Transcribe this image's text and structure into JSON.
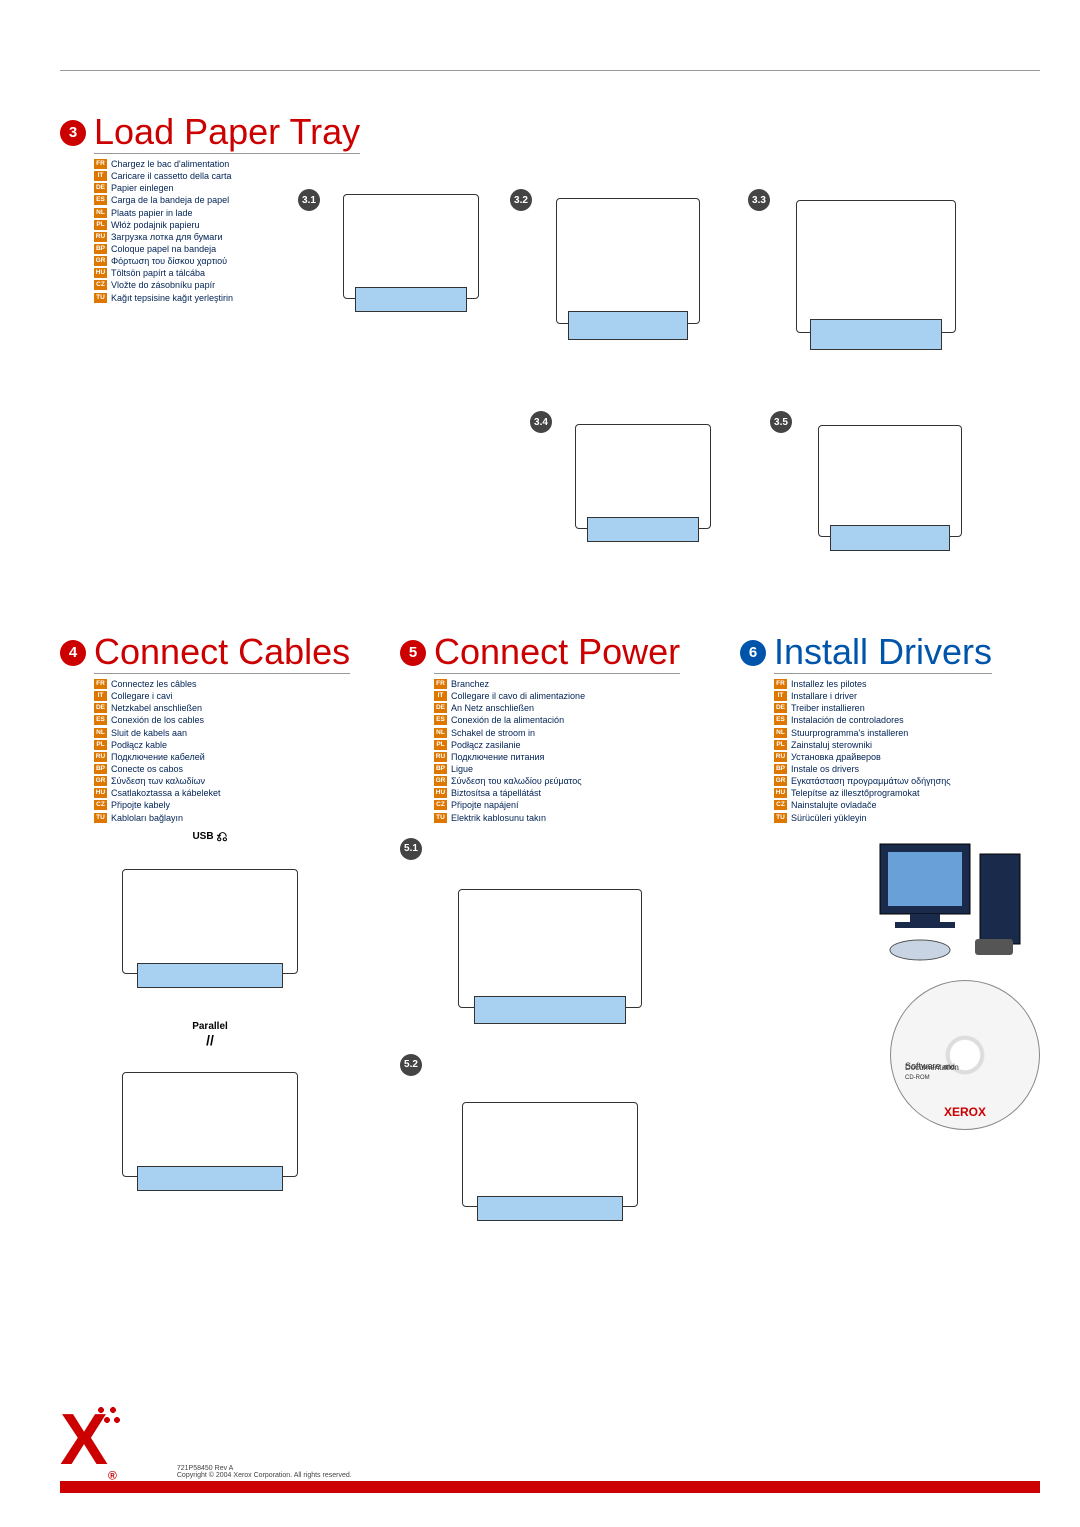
{
  "colors": {
    "red": "#cc0000",
    "blue": "#0055aa",
    "lang_tag": "#dd7700",
    "rule": "#999999"
  },
  "section3": {
    "number": "3",
    "title": "Load Paper Tray",
    "langs": [
      {
        "code": "FR",
        "text": "Chargez le bac d'alimentation"
      },
      {
        "code": "IT",
        "text": "Caricare il cassetto della carta"
      },
      {
        "code": "DE",
        "text": "Papier einlegen"
      },
      {
        "code": "ES",
        "text": "Carga de la bandeja de papel"
      },
      {
        "code": "NL",
        "text": "Plaats papier in lade"
      },
      {
        "code": "PL",
        "text": "Włóż podajnik papieru"
      },
      {
        "code": "RU",
        "text": "Загрузка лотка для бумаги"
      },
      {
        "code": "BP",
        "text": "Coloque papel na bandeja"
      },
      {
        "code": "GR",
        "text": "Φόρτωση του δίσκου χαρτιού"
      },
      {
        "code": "HU",
        "text": "Töltsön papírt a tálcába"
      },
      {
        "code": "CZ",
        "text": "Vložte do zásobníku papír"
      },
      {
        "code": "TU",
        "text": "Kağıt tepsisine kağıt yerleştirin"
      }
    ],
    "fig_labels": [
      "3.1",
      "3.2",
      "3.3",
      "3.4",
      "3.5"
    ]
  },
  "section4": {
    "number": "4",
    "title": "Connect Cables",
    "langs": [
      {
        "code": "FR",
        "text": "Connectez les câbles"
      },
      {
        "code": "IT",
        "text": "Collegare i cavi"
      },
      {
        "code": "DE",
        "text": "Netzkabel anschließen"
      },
      {
        "code": "ES",
        "text": "Conexión de los cables"
      },
      {
        "code": "NL",
        "text": "Sluit de kabels aan"
      },
      {
        "code": "PL",
        "text": "Podłącz kable"
      },
      {
        "code": "RU",
        "text": "Подключение кабелей"
      },
      {
        "code": "BP",
        "text": "Conecte os cabos"
      },
      {
        "code": "GR",
        "text": "Σύνδεση των καλωδίων"
      },
      {
        "code": "HU",
        "text": "Csatlakoztassa a kábeleket"
      },
      {
        "code": "CZ",
        "text": "Připojte kabely"
      },
      {
        "code": "TU",
        "text": "Kabloları bağlayın"
      }
    ],
    "conn_usb": "USB",
    "conn_parallel": "Parallel"
  },
  "section5": {
    "number": "5",
    "title": "Connect Power",
    "langs": [
      {
        "code": "FR",
        "text": "Branchez"
      },
      {
        "code": "IT",
        "text": "Collegare il cavo di alimentazione"
      },
      {
        "code": "DE",
        "text": "An Netz anschließen"
      },
      {
        "code": "ES",
        "text": "Conexión de la alimentación"
      },
      {
        "code": "NL",
        "text": "Schakel de stroom in"
      },
      {
        "code": "PL",
        "text": "Podłącz zasilanie"
      },
      {
        "code": "RU",
        "text": "Подключение питания"
      },
      {
        "code": "BP",
        "text": "Ligue"
      },
      {
        "code": "GR",
        "text": "Σύνδεση του καλωδίου ρεύματος"
      },
      {
        "code": "HU",
        "text": "Biztosítsa a tápellátást"
      },
      {
        "code": "CZ",
        "text": "Připojte napájení"
      },
      {
        "code": "TU",
        "text": "Elektrik kablosunu takın"
      }
    ],
    "fig_labels": [
      "5.1",
      "5.2"
    ]
  },
  "section6": {
    "number": "6",
    "title": "Install Drivers",
    "langs": [
      {
        "code": "FR",
        "text": "Installez les pilotes"
      },
      {
        "code": "IT",
        "text": "Installare i driver"
      },
      {
        "code": "DE",
        "text": "Treiber installieren"
      },
      {
        "code": "ES",
        "text": "Instalación de controladores"
      },
      {
        "code": "NL",
        "text": "Stuurprogramma's installeren"
      },
      {
        "code": "PL",
        "text": "Zainstaluj sterowniki"
      },
      {
        "code": "RU",
        "text": "Установка драйверов"
      },
      {
        "code": "BP",
        "text": "Instale os drivers"
      },
      {
        "code": "GR",
        "text": "Εγκατάσταση προγραμμάτων οδήγησης"
      },
      {
        "code": "HU",
        "text": "Telepítse az illesztőprogramokat"
      },
      {
        "code": "CZ",
        "text": "Nainstalujte ovladače"
      },
      {
        "code": "TU",
        "text": "Sürücüleri yükleyin"
      }
    ],
    "cd_title": "Software",
    "cd_title_sub": "and",
    "cd_doc": "Documentation",
    "cd_rom": "CD-ROM",
    "cd_brand": "XEROX"
  },
  "footer": {
    "part": "721P58450 Rev A",
    "copyright": "Copyright © 2004 Xerox Corporation. All rights reserved."
  }
}
